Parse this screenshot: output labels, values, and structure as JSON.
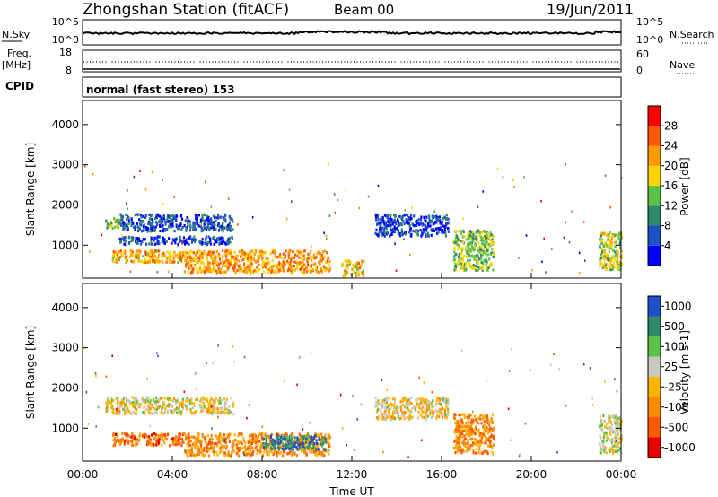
{
  "header": {
    "station": "Zhongshan Station (fitACF)",
    "beam": "Beam 00",
    "date": "19/Jun/2011"
  },
  "noise_panel": {
    "left_label": "N.Sky",
    "left_ticks": [
      "10^5",
      "10^0"
    ],
    "right_label": "N.Search",
    "right_ticks": [
      "10^5",
      "10^0"
    ]
  },
  "freq_panel": {
    "left_label_1": "Freq.",
    "left_label_2": "[MHz]",
    "left_ticks": [
      "18",
      "8"
    ],
    "right_label": "Nave",
    "right_ticks": [
      "60",
      "0"
    ]
  },
  "cpid": {
    "label": "CPID",
    "value": "normal (fast stereo) 153"
  },
  "x_axis": {
    "ticks": [
      "00:00",
      "04:00",
      "08:00",
      "12:00",
      "16:00",
      "20:00",
      "00:00"
    ],
    "label": "Time UT"
  },
  "colors": {
    "velocity_gray": "#c8c8be",
    "power_scale": [
      "#0000ff",
      "#1e50c8",
      "#2e8a6a",
      "#5cc24a",
      "#ffd400",
      "#ff9a00",
      "#ff5a00",
      "#ff0000"
    ],
    "velocity_scale": [
      "#e60000",
      "#ff5a00",
      "#ff8c00",
      "#ffb400",
      "#c8c8be",
      "#5cc24a",
      "#2e8a6a",
      "#1e50c8"
    ]
  },
  "chart_data": [
    {
      "type": "heatmap",
      "ylabel": "Slant Range [km]",
      "xlabel": "",
      "xlim": [
        0,
        24
      ],
      "ylim": [
        180,
        4600
      ],
      "yticks": [
        "1000",
        "2000",
        "3000",
        "4000"
      ],
      "colorbar": {
        "label": "Power [dB]",
        "ticks": [
          "4",
          "8",
          "12",
          "16",
          "20",
          "24",
          "28"
        ]
      },
      "regions": [
        {
          "t0": 1.0,
          "t1": 1.6,
          "r0": 1450,
          "r1": 1700,
          "level": 0.45
        },
        {
          "t0": 1.6,
          "t1": 6.7,
          "r0": 1380,
          "r1": 1800,
          "level": 0.2
        },
        {
          "t0": 1.6,
          "t1": 6.7,
          "r0": 1050,
          "r1": 1250,
          "level": 0.15
        },
        {
          "t0": 1.3,
          "t1": 4.5,
          "r0": 600,
          "r1": 900,
          "level": 0.65
        },
        {
          "t0": 4.5,
          "t1": 11.0,
          "r0": 350,
          "r1": 900,
          "level": 0.7
        },
        {
          "t0": 11.5,
          "t1": 12.5,
          "r0": 250,
          "r1": 650,
          "level": 0.6
        },
        {
          "t0": 13.0,
          "t1": 16.3,
          "r0": 1250,
          "r1": 1800,
          "level": 0.15
        },
        {
          "t0": 16.5,
          "t1": 18.3,
          "r0": 400,
          "r1": 1400,
          "level": 0.45
        },
        {
          "t0": 23.0,
          "t1": 24.0,
          "r0": 400,
          "r1": 1350,
          "level": 0.5
        }
      ]
    },
    {
      "type": "heatmap",
      "ylabel": "Slant Range [km]",
      "xlabel": "Time UT",
      "xlim": [
        0,
        24
      ],
      "ylim": [
        180,
        4600
      ],
      "yticks": [
        "1000",
        "2000",
        "3000",
        "4000"
      ],
      "colorbar": {
        "label": "Velocity [m s-1]",
        "ticks": [
          "1000",
          "500",
          "100",
          "25",
          "-25",
          "-100",
          "-500",
          "-1000"
        ]
      },
      "regions": [
        {
          "t0": 1.0,
          "t1": 6.7,
          "r0": 1380,
          "r1": 1800,
          "level": 0.5
        },
        {
          "t0": 1.3,
          "t1": 4.5,
          "r0": 600,
          "r1": 900,
          "level": 0.25
        },
        {
          "t0": 4.5,
          "t1": 11.0,
          "r0": 350,
          "r1": 900,
          "level": 0.3
        },
        {
          "t0": 8.0,
          "t1": 10.8,
          "r0": 500,
          "r1": 850,
          "level": 0.85
        },
        {
          "t0": 13.0,
          "t1": 16.3,
          "r0": 1250,
          "r1": 1800,
          "level": 0.5
        },
        {
          "t0": 16.5,
          "t1": 18.3,
          "r0": 400,
          "r1": 1400,
          "level": 0.3
        },
        {
          "t0": 23.0,
          "t1": 24.0,
          "r0": 400,
          "r1": 1350,
          "level": 0.55
        }
      ]
    }
  ]
}
